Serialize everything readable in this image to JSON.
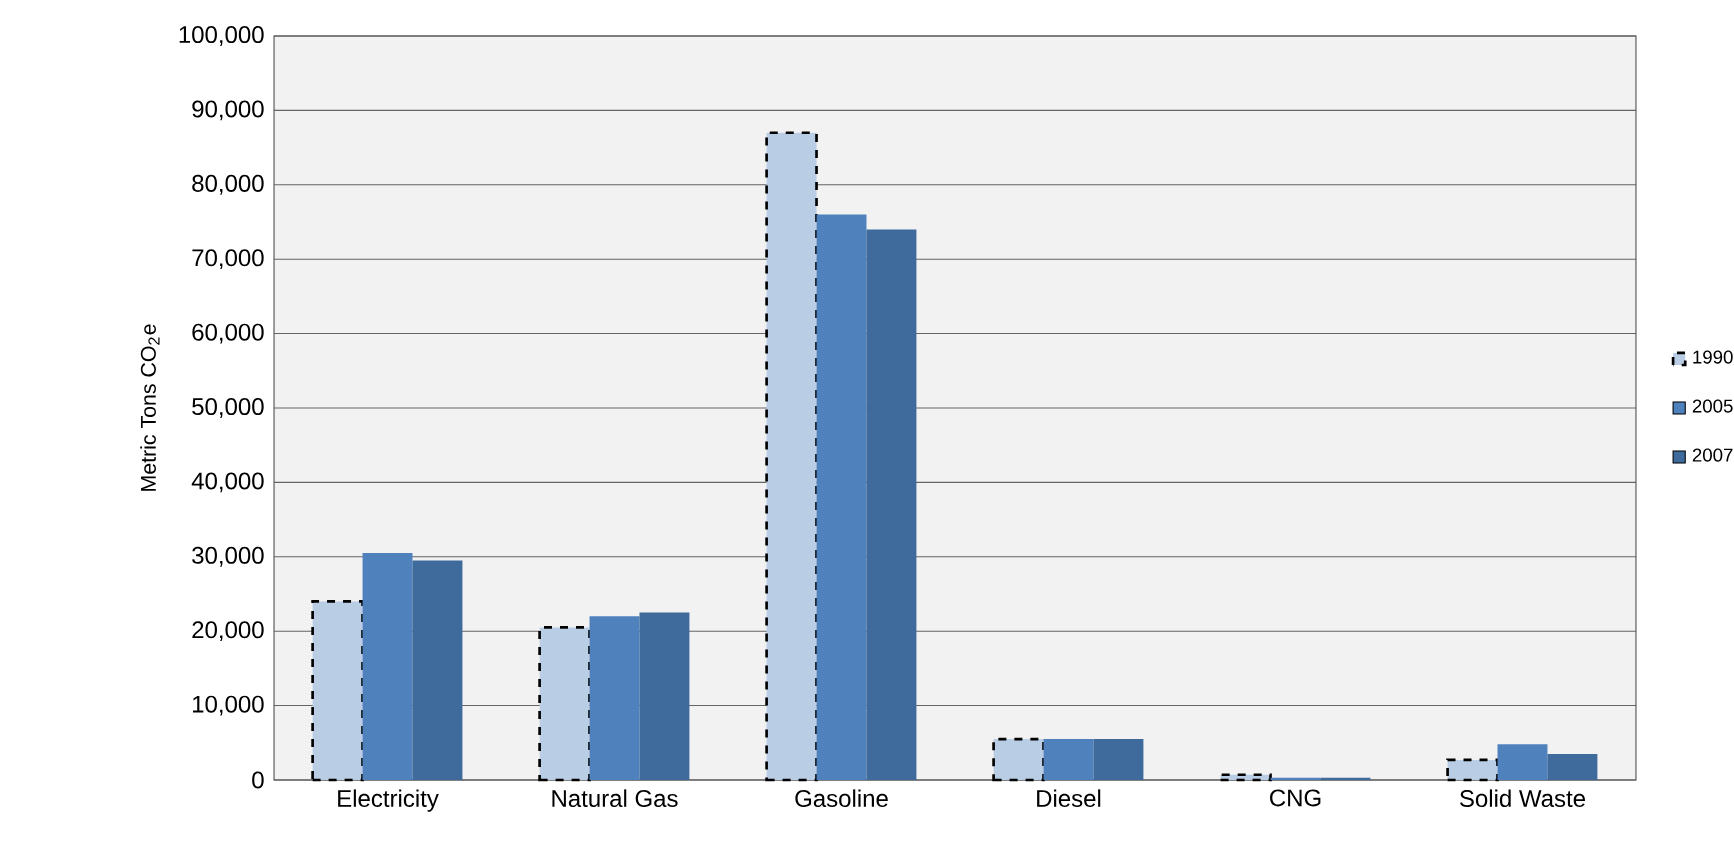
{
  "chart_data": {
    "type": "bar",
    "ylabel": "Metric Tons CO$_{2}$e",
    "categories": [
      "Electricity",
      "Natural Gas",
      "Gasoline",
      "Diesel",
      "CNG",
      "Solid Waste"
    ],
    "series": [
      {
        "name": "1990",
        "color": "#b9cde5",
        "line_style": "dashed",
        "values": [
          24000,
          20500,
          87000,
          5500,
          700,
          2700
        ]
      },
      {
        "name": "2005",
        "color": "#4f81bd",
        "values": [
          30500,
          22000,
          76000,
          5500,
          300,
          4800
        ]
      },
      {
        "name": "2007",
        "color": "#3f6a9c",
        "values": [
          29500,
          22500,
          74000,
          5500,
          300,
          3500
        ]
      }
    ],
    "ylim": [
      0,
      100000
    ],
    "yticks": [
      {
        "value": 0,
        "label": "0"
      },
      {
        "value": 10000,
        "label": "10,000"
      },
      {
        "value": 20000,
        "label": "20,000"
      },
      {
        "value": 30000,
        "label": "30,000"
      },
      {
        "value": 40000,
        "label": "40,000"
      },
      {
        "value": 50000,
        "label": "50,000"
      },
      {
        "value": 60000,
        "label": "60,000"
      },
      {
        "value": 70000,
        "label": "70,000"
      },
      {
        "value": 80000,
        "label": "80,000"
      },
      {
        "value": 90000,
        "label": "90,000"
      },
      {
        "value": 100000,
        "label": "100,000"
      }
    ],
    "grid": "y",
    "legend": "right"
  }
}
